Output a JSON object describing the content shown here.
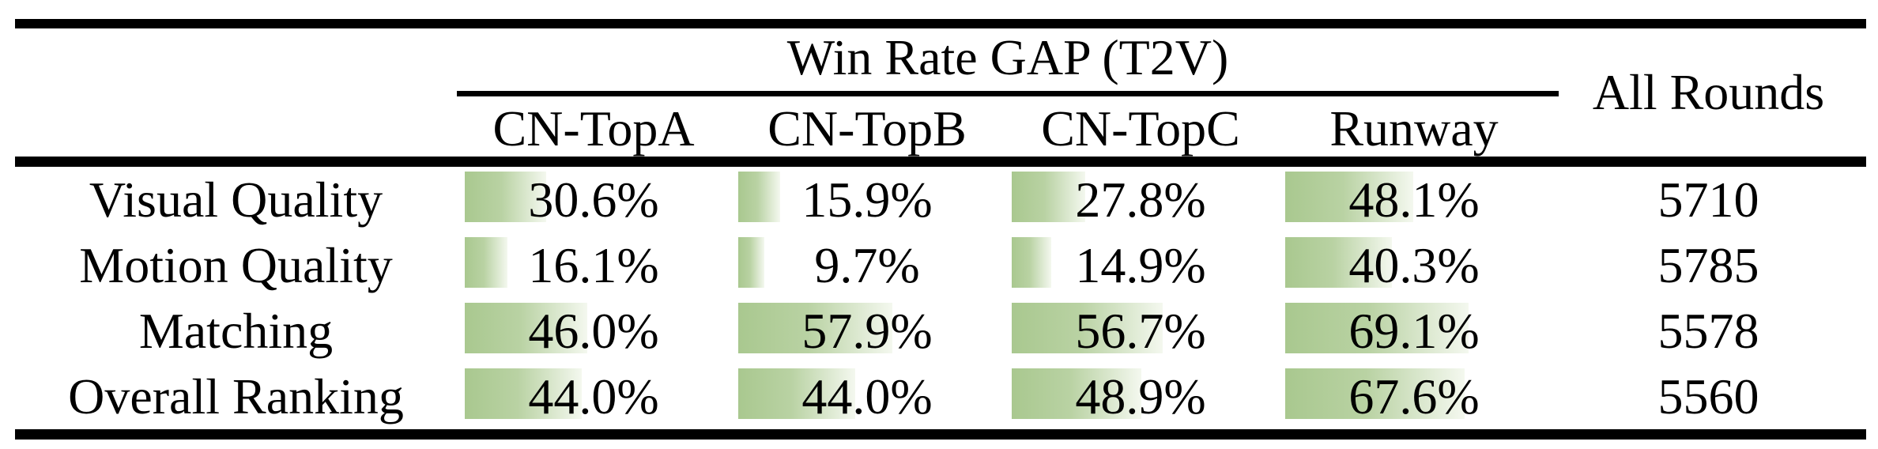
{
  "colors": {
    "bar_green": "#a9c88f",
    "bar_fade": "#f4f8ef",
    "rule_black": "#000000",
    "text": "#000000",
    "background": "#ffffff"
  },
  "table": {
    "title": "Win Rate GAP (T2V)",
    "all_rounds_header": "All Rounds",
    "columns": [
      "CN-TopA",
      "CN-TopB",
      "CN-TopC",
      "Runway"
    ],
    "rows": [
      {
        "label": "Visual Quality",
        "values": [
          "30.6%",
          "15.9%",
          "27.8%",
          "48.1%"
        ],
        "pcts": [
          30.6,
          15.9,
          27.8,
          48.1
        ],
        "all_rounds": "5710"
      },
      {
        "label": "Motion Quality",
        "values": [
          "16.1%",
          "9.7%",
          "14.9%",
          "40.3%"
        ],
        "pcts": [
          16.1,
          9.7,
          14.9,
          40.3
        ],
        "all_rounds": "5785"
      },
      {
        "label": "Matching",
        "values": [
          "46.0%",
          "57.9%",
          "56.7%",
          "69.1%"
        ],
        "pcts": [
          46.0,
          57.9,
          56.7,
          69.1
        ],
        "all_rounds": "5578"
      },
      {
        "label": "Overall Ranking",
        "values": [
          "44.0%",
          "44.0%",
          "48.9%",
          "67.6%"
        ],
        "pcts": [
          44.0,
          44.0,
          48.9,
          67.6
        ],
        "all_rounds": "5560"
      }
    ]
  },
  "chart_data": {
    "type": "table",
    "title": "Win Rate GAP (T2V)",
    "categories": [
      "Visual Quality",
      "Motion Quality",
      "Matching",
      "Overall Ranking"
    ],
    "series": [
      {
        "name": "CN-TopA",
        "values": [
          30.6,
          16.1,
          46.0,
          44.0
        ]
      },
      {
        "name": "CN-TopB",
        "values": [
          15.9,
          9.7,
          57.9,
          44.0
        ]
      },
      {
        "name": "CN-TopC",
        "values": [
          27.8,
          14.9,
          56.7,
          48.9
        ]
      },
      {
        "name": "Runway",
        "values": [
          48.1,
          40.3,
          69.1,
          67.6
        ]
      },
      {
        "name": "All Rounds",
        "values": [
          5710,
          5785,
          5578,
          5560
        ]
      }
    ],
    "value_unit": "%",
    "bar_scale_max": 100,
    "legend_position": "none",
    "grid": false
  }
}
